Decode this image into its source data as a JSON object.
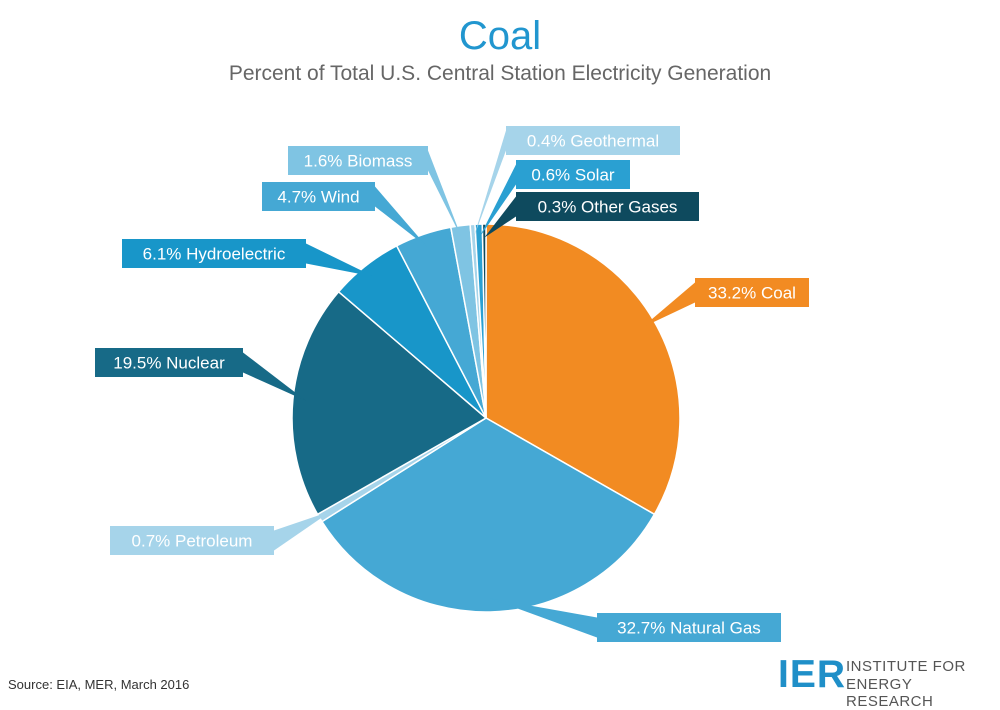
{
  "chart_data": {
    "type": "pie",
    "title": "Coal",
    "subtitle": "Percent of Total U.S. Central Station Electricity Generation",
    "slices": [
      {
        "label": "33.2% Coal",
        "name": "Coal",
        "value": 33.2,
        "color": "#f28b22",
        "text_color": "#ffffff"
      },
      {
        "label": "32.7% Natural Gas",
        "name": "Natural Gas",
        "value": 32.7,
        "color": "#45a8d4",
        "text_color": "#ffffff"
      },
      {
        "label": "0.7% Petroleum",
        "name": "Petroleum",
        "value": 0.7,
        "color": "#a6d4ea",
        "text_color": "#ffffff"
      },
      {
        "label": "19.5% Nuclear",
        "name": "Nuclear",
        "value": 19.5,
        "color": "#176a87",
        "text_color": "#ffffff"
      },
      {
        "label": "6.1% Hydroelectric",
        "name": "Hydroelectric",
        "value": 6.1,
        "color": "#1896c9",
        "text_color": "#ffffff"
      },
      {
        "label": "4.7% Wind",
        "name": "Wind",
        "value": 4.7,
        "color": "#45a8d4",
        "text_color": "#ffffff"
      },
      {
        "label": "1.6% Biomass",
        "name": "Biomass",
        "value": 1.6,
        "color": "#7fc4e3",
        "text_color": "#ffffff"
      },
      {
        "label": "0.4% Geothermal",
        "name": "Geothermal",
        "value": 0.4,
        "color": "#a6d4ea",
        "text_color": "#ffffff"
      },
      {
        "label": "0.6% Solar",
        "name": "Solar",
        "value": 0.6,
        "color": "#2aa0d2",
        "text_color": "#ffffff"
      },
      {
        "label": "0.3% Other Gases",
        "name": "Other Gases",
        "value": 0.3,
        "color": "#0e4a5e",
        "text_color": "#ffffff"
      }
    ]
  },
  "footer": {
    "source": "Source: EIA, MER, March 2016",
    "logo_mark": "IER",
    "logo_line1": "INSTITUTE FOR",
    "logo_line2": "ENERGY RESEARCH"
  }
}
